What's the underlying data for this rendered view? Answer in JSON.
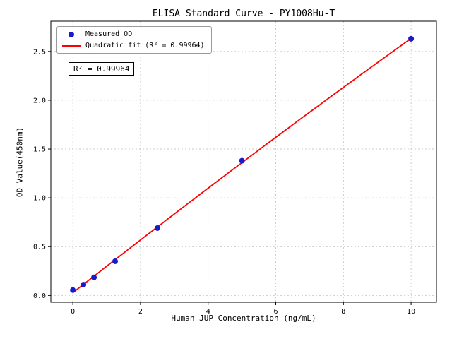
{
  "chart_data": {
    "type": "scatter",
    "title": "ELISA Standard Curve - PY1008Hu-T",
    "xlabel": "Human JUP Concentration (ng/mL)",
    "ylabel": "OD Value(450nm)",
    "xlim": [
      -0.65,
      10.75
    ],
    "ylim": [
      -0.07,
      2.81
    ],
    "xticks": [
      0,
      2,
      4,
      6,
      8,
      10
    ],
    "yticks": [
      0.0,
      0.5,
      1.0,
      1.5,
      2.0,
      2.5
    ],
    "grid": true,
    "annotation": "R² = 0.99964",
    "legend": {
      "position": "upper-left",
      "entries": [
        {
          "label": "Measured OD",
          "marker": "dot",
          "color": "#1a1acd"
        },
        {
          "label": "Quadratic fit (R² = 0.99964)",
          "marker": "line",
          "color": "#ff0000"
        }
      ]
    },
    "series": [
      {
        "name": "Measured OD",
        "type": "scatter",
        "color": "#1a1acd",
        "x": [
          0,
          0.313,
          0.625,
          1.25,
          2.5,
          5,
          10
        ],
        "y": [
          0.055,
          0.11,
          0.185,
          0.35,
          0.69,
          1.38,
          2.63
        ]
      },
      {
        "name": "Quadratic fit",
        "type": "quadratic-fit",
        "color": "#ff0000",
        "r_squared": "0.99964"
      }
    ]
  }
}
